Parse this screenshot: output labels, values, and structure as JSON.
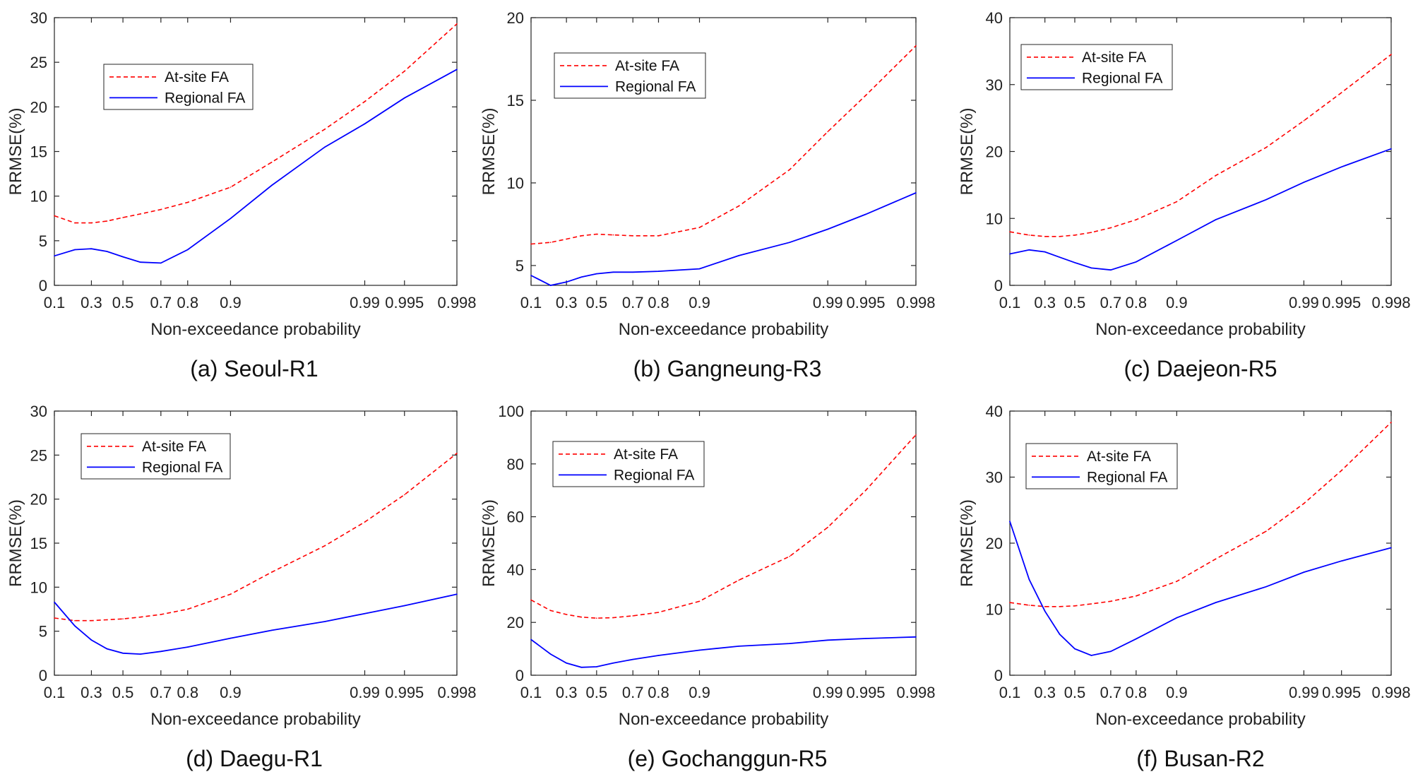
{
  "figure": {
    "xlabel": "Non-exceedance probability",
    "ylabel": "RRMSE(%)",
    "legend": {
      "atsite": "At-site FA",
      "regional": "Regional FA"
    },
    "colors": {
      "atsite": "#ff0000",
      "regional": "#0000ff"
    },
    "xticks": [
      {
        "p": 0.1,
        "label": "0.1"
      },
      {
        "p": 0.3,
        "label": "0.3"
      },
      {
        "p": 0.5,
        "label": "0.5"
      },
      {
        "p": 0.7,
        "label": "0.7"
      },
      {
        "p": 0.8,
        "label": "0.8"
      },
      {
        "p": 0.9,
        "label": "0.9"
      },
      {
        "p": 0.99,
        "label": "0.99"
      },
      {
        "p": 0.995,
        "label": "0.995"
      },
      {
        "p": 0.998,
        "label": "0.998"
      }
    ]
  },
  "chart_data": [
    {
      "type": "line",
      "caption": "(a) Seoul-R1",
      "x_scale": "gumbel",
      "xlim": [
        0.1,
        0.998
      ],
      "ylim": [
        0,
        30
      ],
      "yticks": [
        0,
        5,
        10,
        15,
        20,
        25,
        30
      ],
      "legend_position": "top-left",
      "x": [
        0.1,
        0.2,
        0.3,
        0.4,
        0.5,
        0.6,
        0.7,
        0.8,
        0.9,
        0.95,
        0.98,
        0.99,
        0.995,
        0.998
      ],
      "series": [
        {
          "name": "At-site FA",
          "style": "dashed",
          "values": [
            7.8,
            7.0,
            7.0,
            7.2,
            7.6,
            8.0,
            8.5,
            9.3,
            11.0,
            13.8,
            17.5,
            20.6,
            24.0,
            29.3
          ]
        },
        {
          "name": "Regional FA",
          "style": "solid",
          "values": [
            3.3,
            4.0,
            4.1,
            3.8,
            3.2,
            2.6,
            2.5,
            4.0,
            7.5,
            11.2,
            15.5,
            18.1,
            21.0,
            24.2
          ]
        }
      ]
    },
    {
      "type": "line",
      "caption": "(b) Gangneung-R3",
      "x_scale": "gumbel",
      "xlim": [
        0.1,
        0.998
      ],
      "ylim": [
        3.8,
        20
      ],
      "yticks": [
        5,
        10,
        15,
        20
      ],
      "legend_position": "top-left",
      "x": [
        0.1,
        0.2,
        0.3,
        0.4,
        0.5,
        0.6,
        0.7,
        0.8,
        0.9,
        0.95,
        0.98,
        0.99,
        0.995,
        0.998
      ],
      "series": [
        {
          "name": "At-site FA",
          "style": "dashed",
          "values": [
            6.3,
            6.4,
            6.6,
            6.8,
            6.9,
            6.85,
            6.8,
            6.8,
            7.3,
            8.6,
            10.8,
            13.1,
            15.3,
            18.3
          ]
        },
        {
          "name": "Regional FA",
          "style": "solid",
          "values": [
            4.4,
            3.8,
            4.0,
            4.3,
            4.5,
            4.6,
            4.6,
            4.65,
            4.8,
            5.6,
            6.4,
            7.2,
            8.1,
            9.4
          ]
        }
      ]
    },
    {
      "type": "line",
      "caption": "(c) Daejeon-R5",
      "x_scale": "gumbel",
      "xlim": [
        0.1,
        0.998
      ],
      "ylim": [
        0,
        40
      ],
      "yticks": [
        0,
        10,
        20,
        30,
        40
      ],
      "legend_position": "top-left",
      "x": [
        0.1,
        0.2,
        0.3,
        0.4,
        0.5,
        0.6,
        0.7,
        0.8,
        0.9,
        0.95,
        0.98,
        0.99,
        0.995,
        0.998
      ],
      "series": [
        {
          "name": "At-site FA",
          "style": "dashed",
          "values": [
            8.0,
            7.5,
            7.3,
            7.3,
            7.5,
            7.9,
            8.6,
            9.8,
            12.5,
            16.4,
            20.6,
            24.6,
            28.8,
            34.5
          ]
        },
        {
          "name": "Regional FA",
          "style": "solid",
          "values": [
            4.7,
            5.3,
            5.0,
            4.2,
            3.4,
            2.6,
            2.3,
            3.5,
            6.7,
            9.8,
            12.8,
            15.4,
            17.7,
            20.4
          ]
        }
      ]
    },
    {
      "type": "line",
      "caption": "(d) Daegu-R1",
      "x_scale": "gumbel",
      "xlim": [
        0.1,
        0.998
      ],
      "ylim": [
        0,
        30
      ],
      "yticks": [
        0,
        5,
        10,
        15,
        20,
        25,
        30
      ],
      "legend_position": "top-left",
      "x": [
        0.1,
        0.2,
        0.3,
        0.4,
        0.5,
        0.6,
        0.7,
        0.8,
        0.9,
        0.95,
        0.98,
        0.99,
        0.995,
        0.998
      ],
      "series": [
        {
          "name": "At-site FA",
          "style": "dashed",
          "values": [
            6.5,
            6.2,
            6.2,
            6.3,
            6.4,
            6.6,
            6.9,
            7.5,
            9.2,
            11.7,
            14.7,
            17.4,
            20.5,
            25.2
          ]
        },
        {
          "name": "Regional FA",
          "style": "solid",
          "values": [
            8.3,
            5.6,
            4.0,
            3.0,
            2.5,
            2.4,
            2.7,
            3.2,
            4.2,
            5.1,
            6.1,
            7.0,
            7.9,
            9.2
          ]
        }
      ]
    },
    {
      "type": "line",
      "caption": "(e) Gochanggun-R5",
      "x_scale": "gumbel",
      "xlim": [
        0.1,
        0.998
      ],
      "ylim": [
        0,
        100
      ],
      "yticks": [
        0,
        20,
        40,
        60,
        80,
        100
      ],
      "legend_position": "top-left",
      "x": [
        0.1,
        0.2,
        0.3,
        0.4,
        0.5,
        0.6,
        0.7,
        0.8,
        0.9,
        0.95,
        0.98,
        0.99,
        0.995,
        0.998
      ],
      "series": [
        {
          "name": "At-site FA",
          "style": "dashed",
          "values": [
            28.5,
            24.5,
            23.0,
            22.0,
            21.6,
            21.8,
            22.5,
            23.8,
            28.0,
            36.0,
            45.0,
            56.0,
            70.0,
            91.0
          ]
        },
        {
          "name": "Regional FA",
          "style": "solid",
          "values": [
            13.5,
            8.0,
            4.6,
            3.0,
            3.2,
            4.6,
            6.0,
            7.5,
            9.5,
            11.0,
            12.0,
            13.3,
            13.9,
            14.5
          ]
        }
      ]
    },
    {
      "type": "line",
      "caption": "(f) Busan-R2",
      "x_scale": "gumbel",
      "xlim": [
        0.1,
        0.998
      ],
      "ylim": [
        0,
        40
      ],
      "yticks": [
        0,
        10,
        20,
        30,
        40
      ],
      "legend_position": "top-left",
      "x": [
        0.1,
        0.2,
        0.3,
        0.4,
        0.5,
        0.6,
        0.7,
        0.8,
        0.9,
        0.95,
        0.98,
        0.99,
        0.995,
        0.998
      ],
      "series": [
        {
          "name": "At-site FA",
          "style": "dashed",
          "values": [
            11.0,
            10.6,
            10.4,
            10.4,
            10.5,
            10.8,
            11.2,
            12.0,
            14.2,
            17.6,
            21.8,
            26.0,
            31.0,
            38.3
          ]
        },
        {
          "name": "Regional FA",
          "style": "solid",
          "values": [
            23.3,
            14.5,
            9.7,
            6.2,
            4.0,
            3.0,
            3.6,
            5.5,
            8.7,
            11.0,
            13.4,
            15.6,
            17.3,
            19.3
          ]
        }
      ]
    }
  ]
}
